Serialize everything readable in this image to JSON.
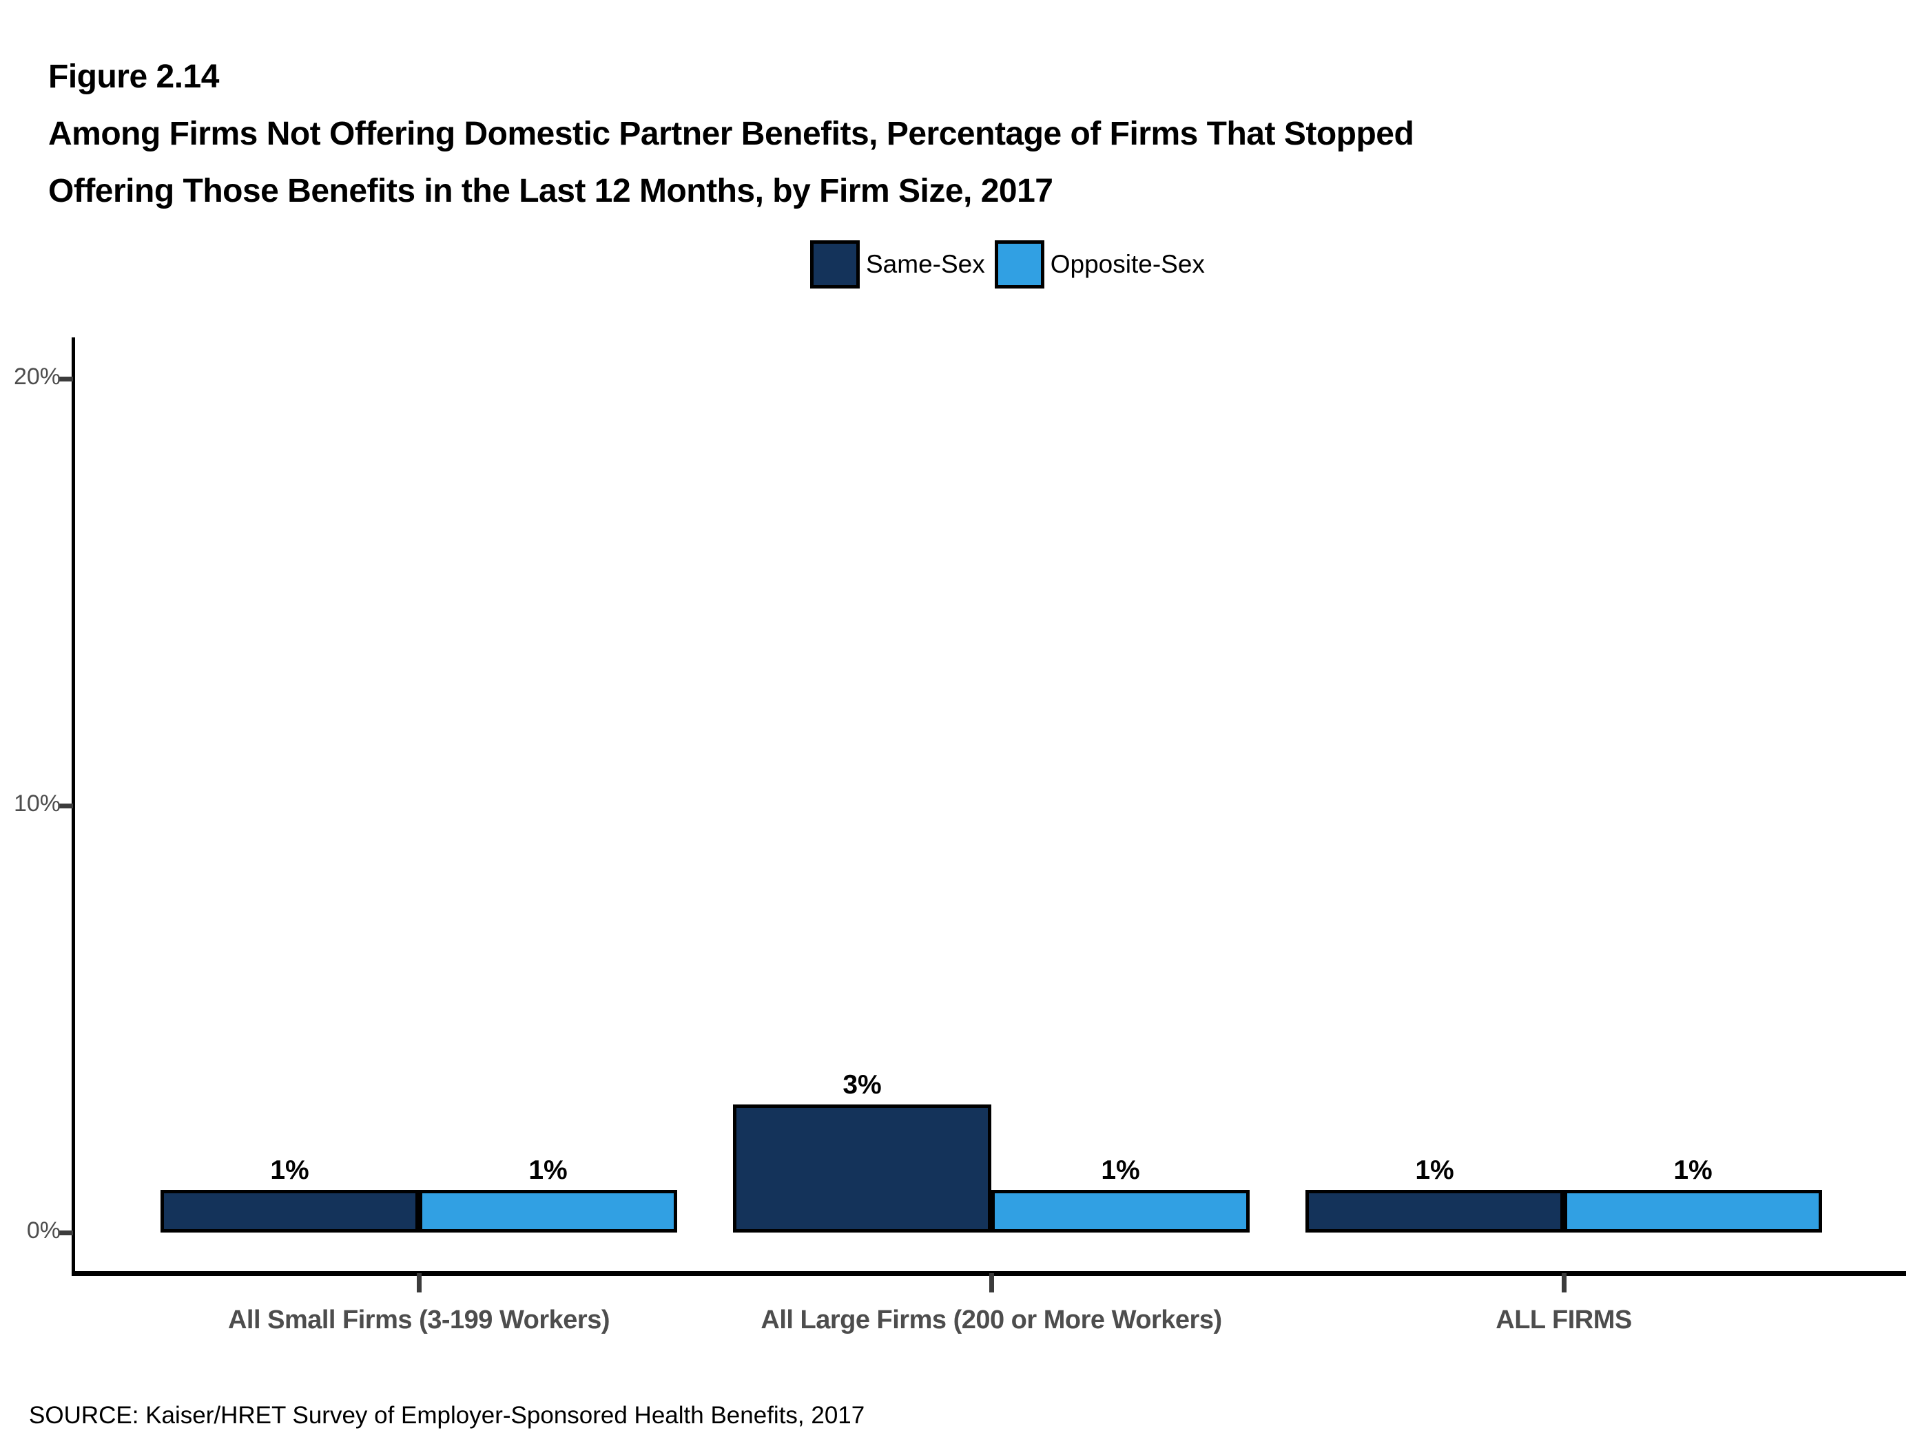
{
  "figure": {
    "label": "Figure 2.14",
    "title_line1": "Among Firms Not Offering Domestic Partner Benefits, Percentage of Firms That Stopped",
    "title_line2": "Offering Those Benefits in the Last 12 Months, by Firm Size, 2017"
  },
  "legend": [
    {
      "label": "Same-Sex",
      "color": "#14335a"
    },
    {
      "label": "Opposite-Sex",
      "color": "#31a0e3"
    }
  ],
  "chart_data": {
    "type": "bar",
    "title": "Among Firms Not Offering Domestic Partner Benefits, Percentage of Firms That Stopped Offering Those Benefits in the Last 12 Months, by Firm Size, 2017",
    "categories": [
      "All Small Firms (3-199 Workers)",
      "All Large Firms (200 or More Workers)",
      "ALL FIRMS"
    ],
    "series": [
      {
        "name": "Same-Sex",
        "color": "#14335a",
        "values": [
          1,
          3,
          1
        ],
        "labels": [
          "1%",
          "3%",
          "1%"
        ]
      },
      {
        "name": "Opposite-Sex",
        "color": "#31a0e3",
        "values": [
          1,
          1,
          1
        ],
        "labels": [
          "1%",
          "1%",
          "1%"
        ]
      }
    ],
    "yticks": [
      {
        "value": 0,
        "label": "0%"
      },
      {
        "value": 10,
        "label": "10%"
      },
      {
        "value": 20,
        "label": "20%"
      }
    ],
    "ylim": [
      0,
      21
    ],
    "xlabel": "",
    "ylabel": "",
    "grid": false,
    "legend_position": "top-center",
    "bar_outline_color": "#000000"
  },
  "source": "SOURCE: Kaiser/HRET Survey of Employer-Sponsored Health Benefits, 2017"
}
